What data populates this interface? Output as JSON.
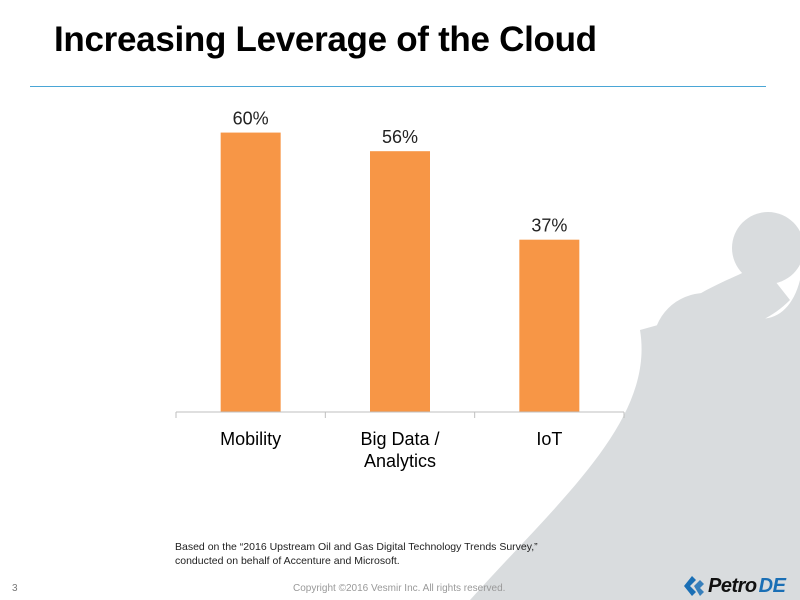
{
  "slide": {
    "title": "Increasing Leverage of the Cloud",
    "source_line1": "Based on the “2016 Upstream Oil and Gas Digital Technology Trends Survey,”",
    "source_line2": "conducted on behalf of Accenture and Microsoft.",
    "page_number": "3",
    "copyright": "Copyright ©2016 Vesmir Inc. All rights reserved.",
    "logo_text_petro": "Petro",
    "logo_text_de": "DE"
  },
  "colors": {
    "bar": "#f79646",
    "title_rule": "#4aa6d6",
    "background_shape": "#d9dcde",
    "logo_accent": "#1a6fb5"
  },
  "chart_data": {
    "type": "bar",
    "categories": [
      [
        "Mobility"
      ],
      [
        "Big Data /",
        "Analytics"
      ],
      [
        "IoT"
      ]
    ],
    "values": [
      60,
      56,
      37
    ],
    "data_labels": [
      "60%",
      "56%",
      "37%"
    ],
    "ylim": [
      0,
      70
    ],
    "grid": false,
    "title": "",
    "xlabel": "",
    "ylabel": ""
  }
}
